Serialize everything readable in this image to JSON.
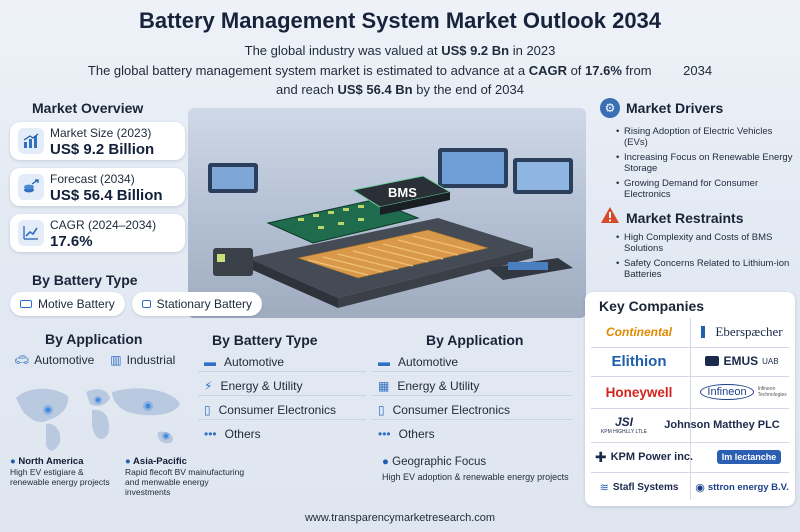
{
  "header": {
    "title": "Battery Management System Market Outlook 2034",
    "line1_pre": "The global industry was valued at ",
    "line1_value": "US$ 9.2 Bn",
    "line1_post": " in 2023",
    "line2_pre": "The global battery management system market is estimated to advance at a ",
    "line2_value": "CAGR",
    "line2_mid": " of ",
    "line2_pct": "17.6%",
    "line2_post": " from",
    "line2_year": "2034",
    "line3_pre": "and reach ",
    "line3_value": "US$ 56.4 Bn",
    "line3_post": " by the end of 2034"
  },
  "hero": {
    "chip_label": "BMS"
  },
  "overview": {
    "title": "Market Overview",
    "items": [
      {
        "label": "Market Size (2023)",
        "value": "US$ 9.2 Billion",
        "icon": "growth-chart-icon"
      },
      {
        "label": "Forecast (2034)",
        "value": "US$ 56.4 Billion",
        "icon": "coins-icon"
      },
      {
        "label": "CAGR (2024–2034)",
        "value": "17.6%",
        "icon": "trend-chart-icon"
      }
    ]
  },
  "by_battery_type_top": {
    "title": "By Battery Type",
    "items": [
      "Motive Battery",
      "Stationary Battery"
    ]
  },
  "by_application_left": {
    "title": "By Application",
    "items": [
      "Automotive",
      "Industrial"
    ]
  },
  "by_battery_type_mid": {
    "title": "By Battery Type",
    "items": [
      "Automotive",
      "Energy & Utility",
      "Consumer Electronics",
      "Others"
    ]
  },
  "by_application_mid": {
    "title": "By Application",
    "items": [
      "Automotive",
      "Energy & Utility",
      "Consumer Electronics",
      "Others"
    ]
  },
  "regions": [
    {
      "name": "North America",
      "note": "High EV estigiare & renewable energy projects"
    },
    {
      "name": "Asia-Pacific",
      "note": "Rapid flecoft BV mainufacturing and menwable energy investments"
    }
  ],
  "geo_focus": {
    "title": "Geographic Focus",
    "note": "High EV adoption & renewable energy projects"
  },
  "drivers": {
    "title": "Market Drivers",
    "items": [
      "Rising Adoption of Electric Vehicles (EVs)",
      "Increasing Focus on Renewable Energy Storage",
      "Growing Demand for Consumer Electronics"
    ]
  },
  "restraints": {
    "title": "Market Restraints",
    "items": [
      "High Complexity and Costs of BMS Solutions",
      "Safety Concerns Related to Lithium-ion Batteries"
    ]
  },
  "companies": {
    "title": "Key Companies",
    "logos": [
      {
        "name": "Continental",
        "color": "#e08a00"
      },
      {
        "name": "Eberspæcher",
        "color": "#1b2a4a"
      },
      {
        "name": "Elithion",
        "color": "#1f5fae"
      },
      {
        "name": "EMUS",
        "suffix": "UAB",
        "color": "#1b2a4a"
      },
      {
        "name": "Honeywell",
        "color": "#d4231c"
      },
      {
        "name": "Infineon",
        "tag": "Infineon Technologies",
        "color": "#1e3f8a"
      },
      {
        "name": "JSI",
        "tag": "KPM HIGHLLY LTLE",
        "color": "#1b2a4a"
      },
      {
        "name": "Johnson Matthey PLC",
        "color": "#1b2a4a"
      },
      {
        "name": "KPM Power inc.",
        "color": "#1b2a4a"
      },
      {
        "name": "lectanche",
        "color": "#2a5fb3"
      },
      {
        "name": "Stafl Systems",
        "color": "#1b2a4a"
      },
      {
        "name": "sttron energy B.V.",
        "color": "#1e3f8a"
      }
    ]
  },
  "footer": {
    "url": "www.transparencymarketresearch.com"
  },
  "colors": {
    "accent": "#1f5fae",
    "icon_blue": "#2f6fc4",
    "warning": "#d64a2a"
  }
}
